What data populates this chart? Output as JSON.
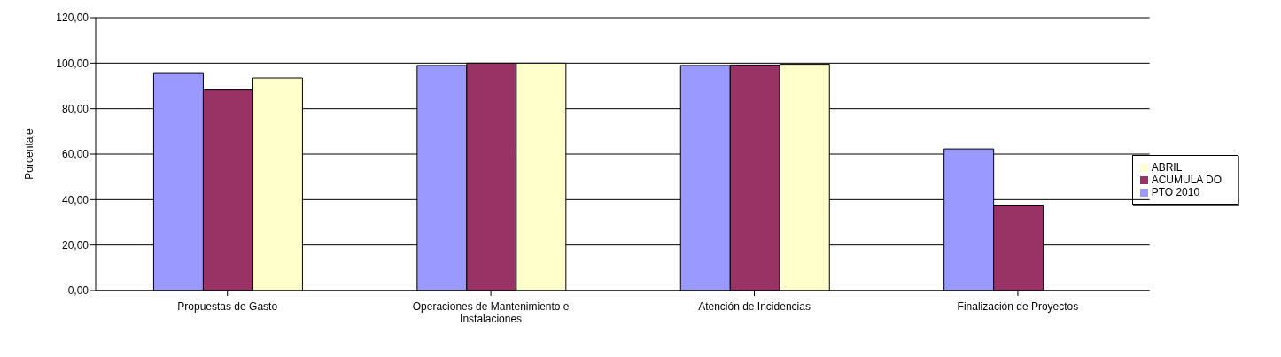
{
  "chart_data": {
    "type": "bar",
    "ylabel": "Porcentaje",
    "categories": [
      "Propuestas de Gasto",
      "Operaciones de Mantenimiento e Instalaciones",
      "Atención de Incidencias",
      "Finalización de Proyectos"
    ],
    "series": [
      {
        "name": "PTO  2010",
        "color": "#9999ff",
        "values": [
          95.8,
          99,
          99,
          62.3
        ]
      },
      {
        "name": "ACUMULA DO",
        "color": "#993366",
        "values": [
          88.2,
          100,
          99.2,
          37.6
        ]
      },
      {
        "name": "ABRIL",
        "color": "#ffffcc",
        "values": [
          93.5,
          100,
          99.5,
          null
        ]
      }
    ],
    "ylim": [
      0,
      120
    ],
    "yticks": [
      {
        "value": 0,
        "label": "0,00"
      },
      {
        "value": 20,
        "label": "20,00"
      },
      {
        "value": 40,
        "label": "40,00"
      },
      {
        "value": 60,
        "label": "60,00"
      },
      {
        "value": 80,
        "label": "80,00"
      },
      {
        "value": 100,
        "label": "100,00"
      },
      {
        "value": 120,
        "label": "120,00"
      }
    ],
    "grid": "y",
    "legend": "right"
  }
}
